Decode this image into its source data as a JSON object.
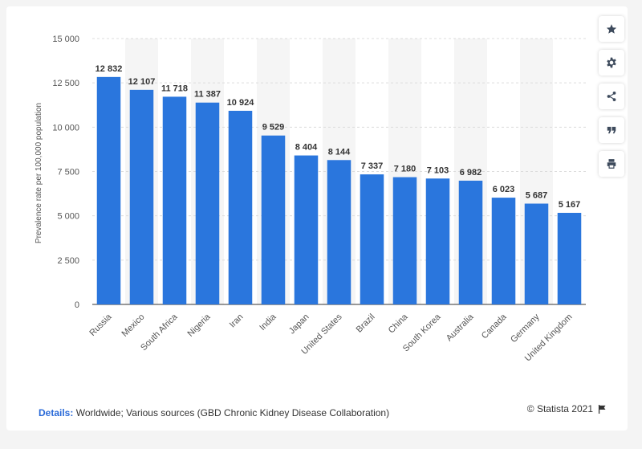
{
  "chart_data": {
    "type": "bar",
    "categories": [
      "Russia",
      "Mexico",
      "South Africa",
      "Nigeria",
      "Iran",
      "India",
      "Japan",
      "United States",
      "Brazil",
      "China",
      "South Korea",
      "Australia",
      "Canada",
      "Germany",
      "United Kingdom"
    ],
    "values": [
      12832,
      12107,
      11718,
      11387,
      10924,
      9529,
      8404,
      8144,
      7337,
      7180,
      7103,
      6982,
      6023,
      5687,
      5167
    ],
    "value_labels": [
      "12 832",
      "12 107",
      "11 718",
      "11 387",
      "10 924",
      "9 529",
      "8 404",
      "8 144",
      "7 337",
      "7 180",
      "7 103",
      "6 982",
      "6 023",
      "5 687",
      "5 167"
    ],
    "ylabel": "Prevalence rate per 100,000 population",
    "xlabel": "",
    "ylim": [
      0,
      15000
    ],
    "yticks": [
      0,
      2500,
      5000,
      7500,
      10000,
      12500,
      15000
    ],
    "ytick_labels": [
      "0",
      "2 500",
      "5 000",
      "7 500",
      "10 000",
      "12 500",
      "15 000"
    ],
    "grid": true,
    "legend": "none",
    "colors": {
      "bar": "#2a76dd",
      "stripe": "#f5f5f5",
      "grid": "#dcdcdc",
      "tick": "#555555",
      "label": "#333333"
    }
  },
  "footer": {
    "details_label": "Details:",
    "details_text": "Worldwide; Various sources (GBD Chronic Kidney Disease Collaboration)",
    "credit": "© Statista 2021"
  },
  "tools": [
    "star-icon",
    "gear-icon",
    "share-icon",
    "quote-icon",
    "print-icon"
  ]
}
